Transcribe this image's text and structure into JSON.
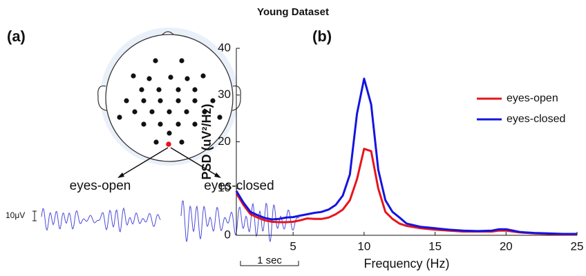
{
  "title": "Young Dataset",
  "panels": [
    "(a)",
    "(b)"
  ],
  "diagram": {
    "labels": [
      "eyes-open",
      "eyes-closed"
    ],
    "scale_amplitude": "10μV",
    "scale_time": "1 sec"
  },
  "chart_data": {
    "type": "line",
    "xlabel": "Frequency (Hz)",
    "ylabel": "PSD (uV²/Hz)",
    "x": [
      1,
      1.5,
      2,
      2.5,
      3,
      3.5,
      4,
      4.5,
      5,
      5.5,
      6,
      6.5,
      7,
      7.5,
      8,
      8.5,
      9,
      9.5,
      10,
      10.5,
      11,
      11.5,
      12,
      12.5,
      13,
      14,
      15,
      16,
      17,
      18,
      19,
      19.5,
      20,
      20.5,
      21,
      22,
      23,
      24,
      25
    ],
    "series": [
      {
        "name": "eyes-open",
        "color": "#e8141b",
        "values": [
          9,
          6.5,
          4.5,
          3.8,
          3.2,
          2.9,
          2.8,
          2.8,
          2.9,
          3.2,
          3.6,
          3.5,
          3.5,
          3.8,
          4.5,
          5.5,
          7.5,
          12,
          18.5,
          18,
          10,
          5,
          3.5,
          2.5,
          2,
          1.5,
          1.2,
          1,
          0.8,
          0.8,
          0.8,
          1,
          1,
          0.8,
          0.6,
          0.4,
          0.3,
          0.2,
          0.2
        ]
      },
      {
        "name": "eyes-closed",
        "color": "#1414e0",
        "values": [
          9.5,
          7,
          5,
          4.3,
          3.7,
          3.4,
          3.5,
          3.8,
          3.9,
          4.2,
          4.5,
          4.8,
          5,
          5.5,
          6.5,
          8.5,
          13,
          26,
          33.5,
          28,
          14,
          7.5,
          5,
          3.8,
          2.5,
          1.8,
          1.5,
          1.2,
          1,
          0.9,
          1,
          1.3,
          1.3,
          1,
          0.7,
          0.5,
          0.4,
          0.3,
          0.3
        ]
      }
    ],
    "xlim": [
      1,
      25
    ],
    "xticks": [
      5,
      10,
      15,
      20,
      25
    ],
    "ylim": [
      0,
      40
    ],
    "yticks": [
      0,
      10,
      20,
      30,
      40
    ],
    "legend": "upper right"
  }
}
